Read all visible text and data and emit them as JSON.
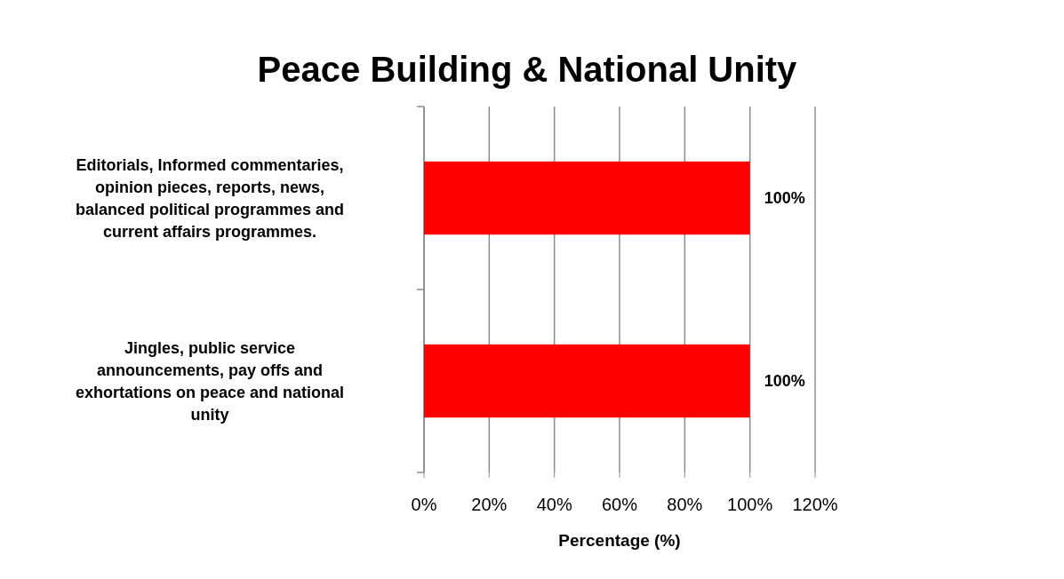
{
  "chart_data": {
    "type": "bar",
    "orientation": "horizontal",
    "title": "Peace Building & National Unity",
    "xlabel": "Percentage (%)",
    "categories": [
      "Editorials, Informed commentaries, opinion pieces, reports, news, balanced political programmes and current affairs programmes.",
      "Jingles, public service announcements, pay offs and exhortations on peace and national unity"
    ],
    "series": [
      {
        "color": "#ff0000",
        "values": [
          100,
          100
        ],
        "value_labels": [
          "100%",
          "100%"
        ]
      }
    ],
    "xlim": [
      0,
      120
    ],
    "xticks": [
      {
        "value": 0,
        "label": "0%"
      },
      {
        "value": 20,
        "label": "20%"
      },
      {
        "value": 40,
        "label": "40%"
      },
      {
        "value": 60,
        "label": "60%"
      },
      {
        "value": 80,
        "label": "80%"
      },
      {
        "value": 100,
        "label": "100%"
      },
      {
        "value": 120,
        "label": "120%"
      }
    ],
    "grid": "x"
  }
}
